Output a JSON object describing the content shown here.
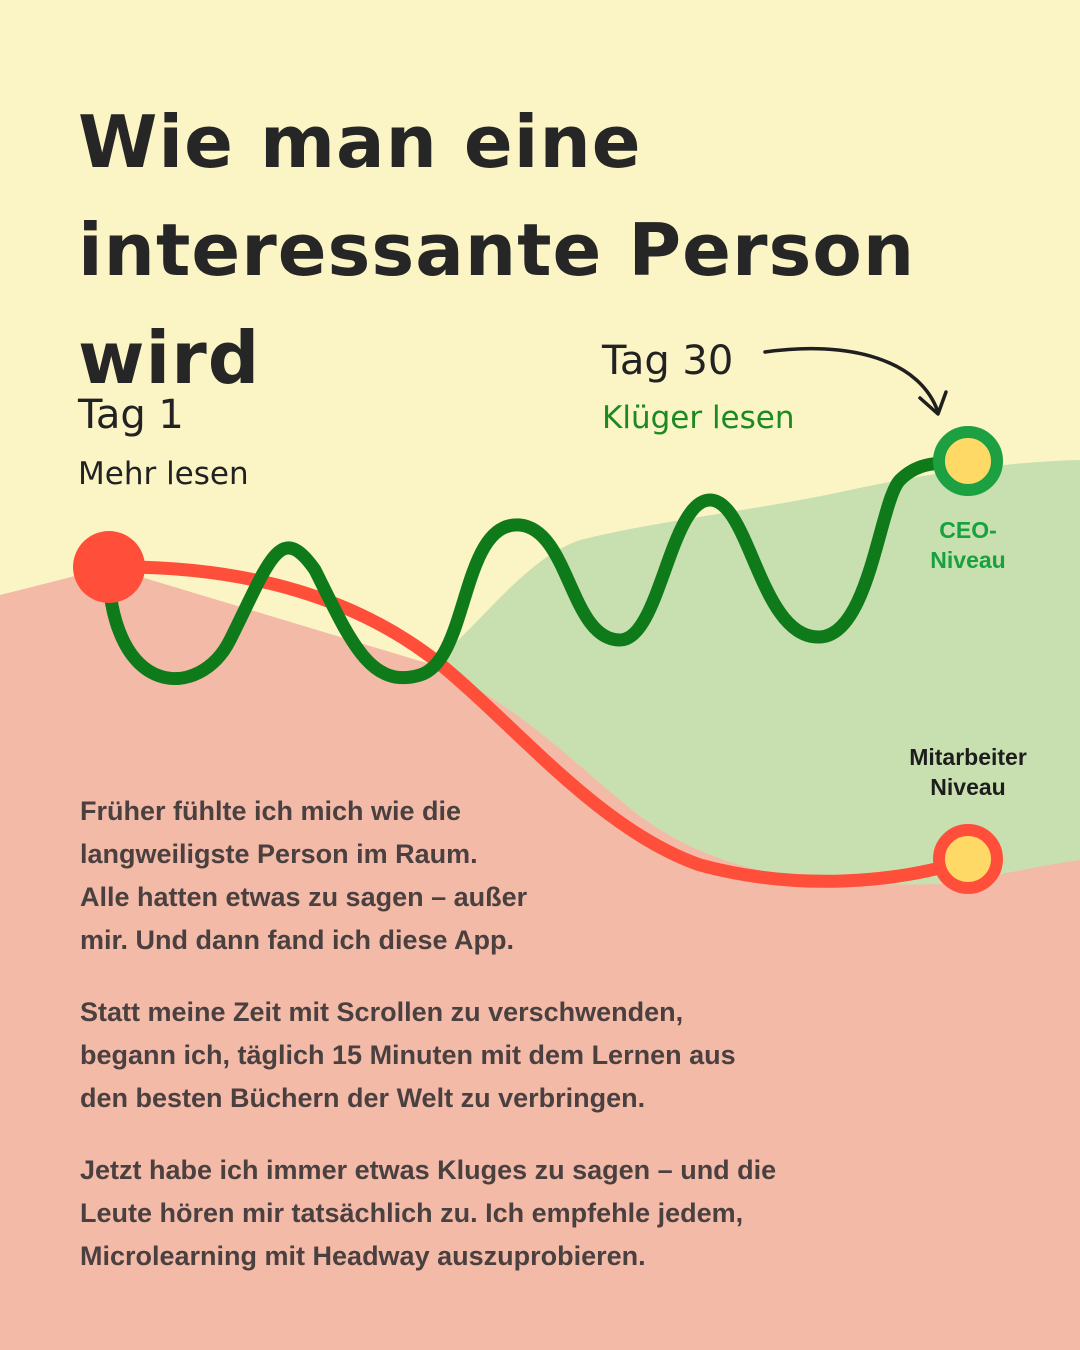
{
  "title": {
    "line1": "Wie man eine",
    "line2": "interessante Person wird"
  },
  "start": {
    "day": "Tag 1",
    "label": "Mehr lesen"
  },
  "end": {
    "day": "Tag 30",
    "label": "Klüger lesen"
  },
  "levels": {
    "ceo": "CEO-\nNiveau",
    "employee": "Mitarbeiter\nNiveau"
  },
  "paragraphs": [
    "Früher fühlte ich mich wie die\nlangweiligste Person im Raum.\nAlle hatten etwas zu sagen – außer\nmir. Und dann fand ich diese App.",
    "Statt meine Zeit mit Scrollen zu verschwenden,\nbegann ich, täglich 15 Minuten mit dem Lernen aus\nden besten Büchern der Welt zu verbringen.",
    "Jetzt habe ich immer etwas Kluges zu sagen – und die\nLeute hören mir tatsächlich zu. Ich empfehle jedem,\nMicrolearning mit Headway auszuprobieren."
  ],
  "colors": {
    "background": "#fbf4c5",
    "red_area": "#f4baa8",
    "green_area": "#c8e0b0",
    "red_line": "#ff4f3a",
    "green_line": "#0f7a19",
    "dot_fill": "#ffd966",
    "ceo_ring": "#1ca041"
  }
}
